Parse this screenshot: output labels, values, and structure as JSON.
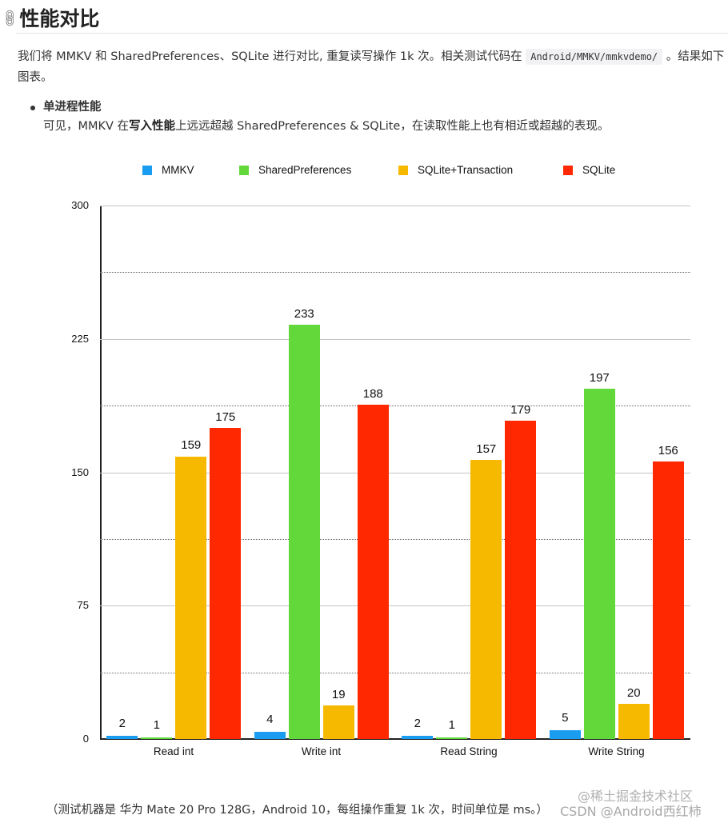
{
  "heading": {
    "icon": "link-icon",
    "title": "性能对比"
  },
  "intro": {
    "before_code": "我们将 MMKV 和 SharedPreferences、SQLite 进行对比, 重复读写操作 1k 次。相关测试代码在 ",
    "code": "Android/MMKV/mmkvdemo/",
    "after_code": " 。结果如下图表。"
  },
  "bullet": {
    "title": "单进程性能",
    "desc_before": "可见，MMKV 在",
    "desc_bold": "写入性能",
    "desc_after": "上远远超越 SharedPreferences & SQLite，在读取性能上也有相近或超越的表现。"
  },
  "chart_data": {
    "type": "bar",
    "title": "",
    "xlabel": "",
    "ylabel": "",
    "ylim": [
      0,
      300
    ],
    "yticks": [
      0,
      75,
      150,
      225,
      300
    ],
    "minor_gridlines": [
      37.5,
      112.5,
      187.5,
      262.5
    ],
    "grid": true,
    "legend_position": "top",
    "categories": [
      "Read int",
      "Write int",
      "Read String",
      "Write String"
    ],
    "series": [
      {
        "name": "MMKV",
        "color": "#1a9cf0",
        "values": [
          2,
          4,
          2,
          5
        ]
      },
      {
        "name": "SharedPreferences",
        "color": "#62d83a",
        "values": [
          1,
          233,
          1,
          197
        ]
      },
      {
        "name": "SQLite+Transaction",
        "color": "#f7b900",
        "values": [
          159,
          19,
          157,
          20
        ]
      },
      {
        "name": "SQLite",
        "color": "#ff2800",
        "values": [
          175,
          188,
          179,
          156
        ]
      }
    ]
  },
  "footer": {
    "note": "（测试机器是 华为 Mate 20 Pro 128G，Android 10，每组操作重复 1k 次，时间单位是 ms。）"
  },
  "watermarks": {
    "juejin": "@稀土掘金技术社区",
    "csdn": "CSDN @Android西红柿"
  }
}
